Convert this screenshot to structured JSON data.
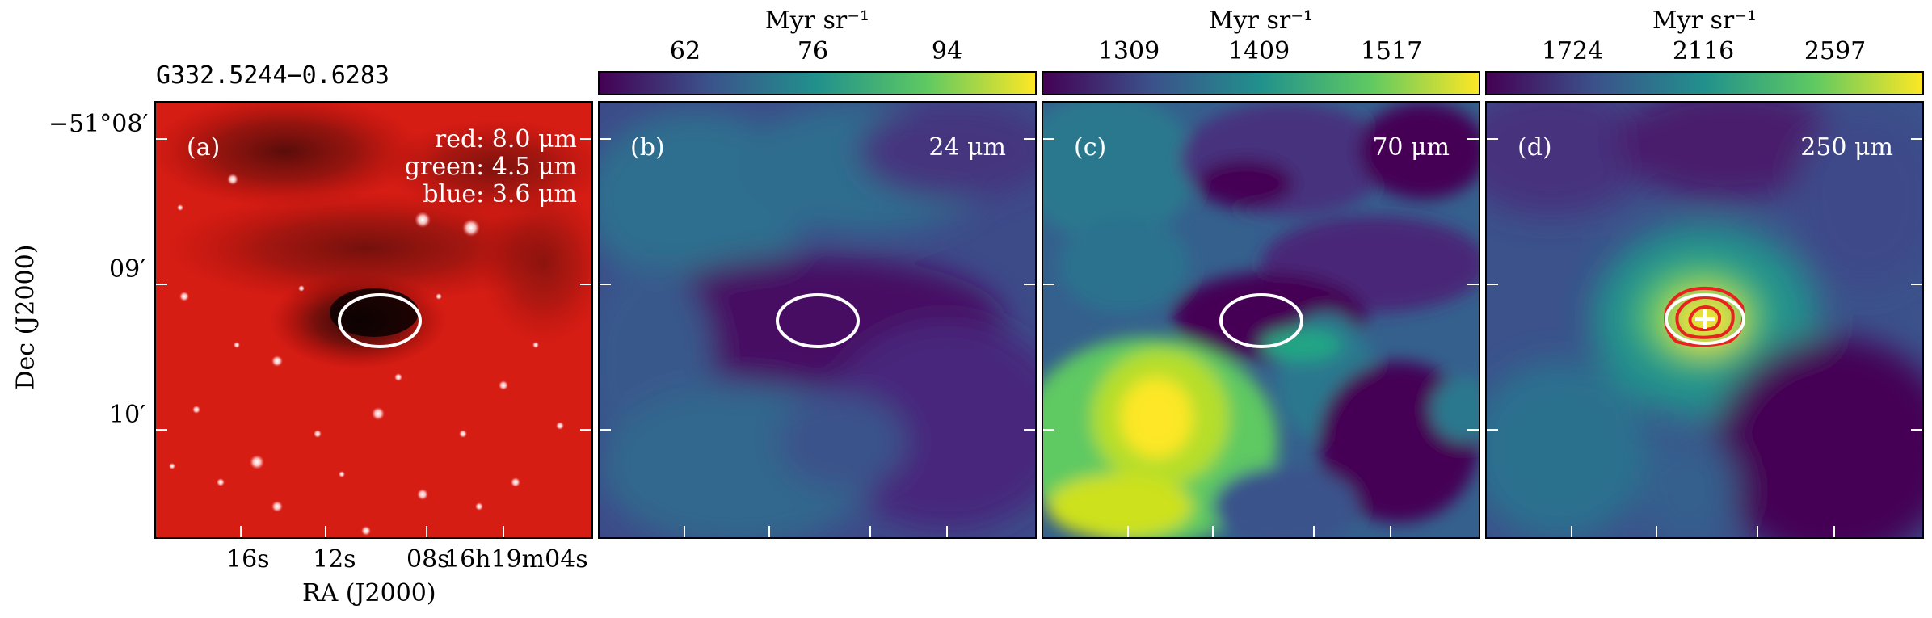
{
  "source_name": "G332.5244−0.6283",
  "colorbar_unit": "Myr sr⁻¹",
  "panels": [
    {
      "id": "a",
      "label": "(a)",
      "legend": [
        "red: 8.0 μm",
        "green: 4.5 μm",
        "blue: 3.6 μm"
      ]
    },
    {
      "id": "b",
      "label": "(b)",
      "wavelength": "24 μm",
      "cbar_ticks": [
        "62",
        "76",
        "94"
      ]
    },
    {
      "id": "c",
      "label": "(c)",
      "wavelength": "70 μm",
      "cbar_ticks": [
        "1309",
        "1409",
        "1517"
      ]
    },
    {
      "id": "d",
      "label": "(d)",
      "wavelength": "250 μm",
      "cbar_ticks": [
        "1724",
        "2116",
        "2597"
      ]
    }
  ],
  "axes": {
    "xlabel": "RA (J2000)",
    "ylabel": "Dec (J2000)",
    "xticks": [
      "16s",
      "12s",
      "08s",
      "16h19m04s"
    ],
    "yticks": [
      "−51°08′",
      "09′",
      "10′"
    ]
  },
  "colors": {
    "ellipse": "#ffffff",
    "contour": "#e8231f",
    "viridis_low": "#440154",
    "viridis_high": "#fde725"
  }
}
